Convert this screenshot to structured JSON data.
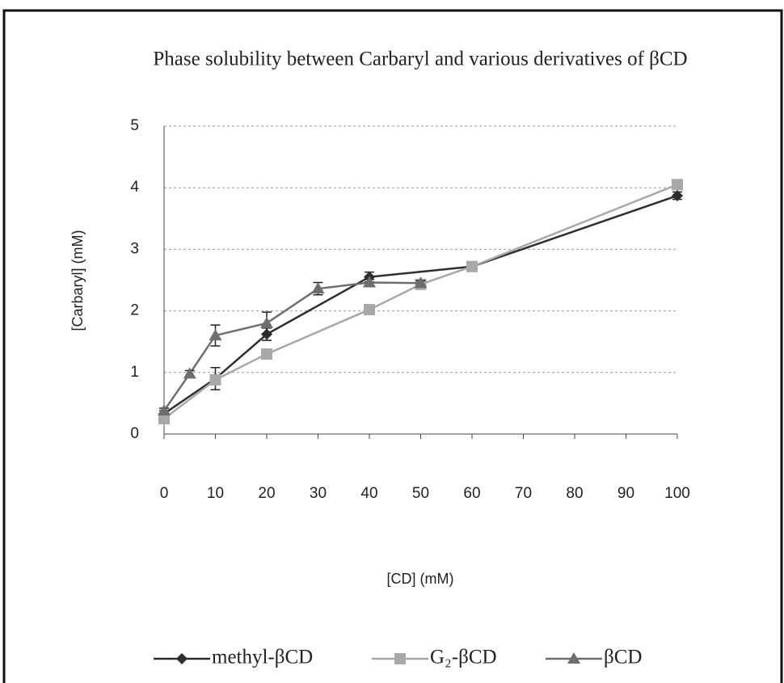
{
  "chart_data": {
    "type": "line",
    "title": "Phase solubility between Carbaryl and various derivatives of βCD",
    "x_label": "[CD] (mM)",
    "y_label": "[Carbaryl] (mM)",
    "xlim": [
      0,
      100
    ],
    "xticks": [
      0,
      10,
      20,
      30,
      40,
      50,
      60,
      70,
      80,
      90,
      100
    ],
    "ylim": [
      0,
      5
    ],
    "yticks": [
      0,
      1,
      2,
      3,
      4,
      5
    ],
    "grid": true,
    "legend": "bottom",
    "series": [
      {
        "name": "methyl-βCD",
        "color": "#2e2e2e",
        "marker": "diamond",
        "x": [
          0,
          10,
          20,
          40,
          60,
          100
        ],
        "values": [
          0.33,
          0.9,
          1.62,
          2.55,
          2.72,
          3.87
        ],
        "errors": [
          0.05,
          0.18,
          0.1,
          0.08,
          0.03,
          0.06
        ]
      },
      {
        "name": "G₂-βCD",
        "color": "#a8a8a8",
        "marker": "square",
        "x": [
          0,
          10,
          20,
          40,
          50,
          60,
          100
        ],
        "values": [
          0.25,
          0.88,
          1.3,
          2.02,
          2.43,
          2.72,
          4.05
        ]
      },
      {
        "name": "βCD",
        "color": "#6e6e6e",
        "marker": "triangle",
        "x": [
          0,
          5,
          10,
          20,
          30,
          40,
          50
        ],
        "values": [
          0.38,
          0.98,
          1.6,
          1.8,
          2.36,
          2.46,
          2.45
        ],
        "errors": [
          0.04,
          0.05,
          0.17,
          0.18,
          0.1,
          0.05,
          0.04
        ]
      }
    ]
  }
}
